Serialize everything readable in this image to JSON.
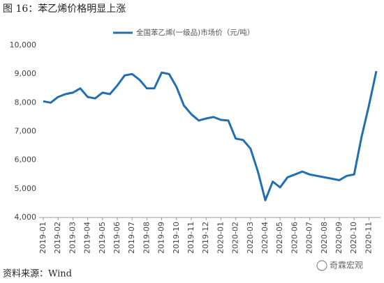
{
  "chart_data": {
    "type": "line",
    "title": "图 16：苯乙烯价格明显上涨",
    "source": "资料来源：Wind",
    "watermark": "奇霖宏观",
    "categories": [
      "2019-01",
      null,
      "2019-02",
      null,
      "2019-03",
      null,
      "2019-04",
      null,
      "2019-05",
      null,
      "2019-06",
      null,
      "2019-07",
      null,
      "2019-08",
      null,
      "2019-09",
      null,
      "2019-10",
      null,
      "2019-11",
      null,
      "2019-12",
      null,
      "2020-01",
      null,
      "2020-02",
      null,
      "2020-03",
      null,
      "2020-04",
      null,
      "2020-05",
      null,
      "2020-06",
      null,
      "2020-07",
      null,
      "2020-08",
      null,
      "2020-09",
      null,
      "2020-10",
      null,
      "2020-11",
      null
    ],
    "series": [
      {
        "name": "全国苯乙烯(一级品)市场价（元/吨）",
        "color": "#1f6fb2",
        "values": [
          8050,
          8000,
          8200,
          8300,
          8350,
          8500,
          8200,
          8150,
          8350,
          8300,
          8600,
          8950,
          9000,
          8800,
          8500,
          8500,
          9050,
          9000,
          8550,
          7900,
          7600,
          7380,
          7450,
          7500,
          7400,
          7380,
          6750,
          6700,
          6400,
          5600,
          4600,
          5250,
          5050,
          5400,
          5500,
          5600,
          5500,
          5450,
          5400,
          5350,
          5300,
          5450,
          5500,
          6800,
          7900,
          9100
        ]
      }
    ],
    "ylim": [
      4000,
      10000
    ],
    "yticks": [
      {
        "value": 4000,
        "label": "4,000"
      },
      {
        "value": 5000,
        "label": "5,000"
      },
      {
        "value": 6000,
        "label": "6,000"
      },
      {
        "value": 7000,
        "label": "7,000"
      },
      {
        "value": 8000,
        "label": "8,000"
      },
      {
        "value": 9000,
        "label": "9,000"
      },
      {
        "value": 10000,
        "label": "10,000"
      }
    ],
    "grid": false
  }
}
